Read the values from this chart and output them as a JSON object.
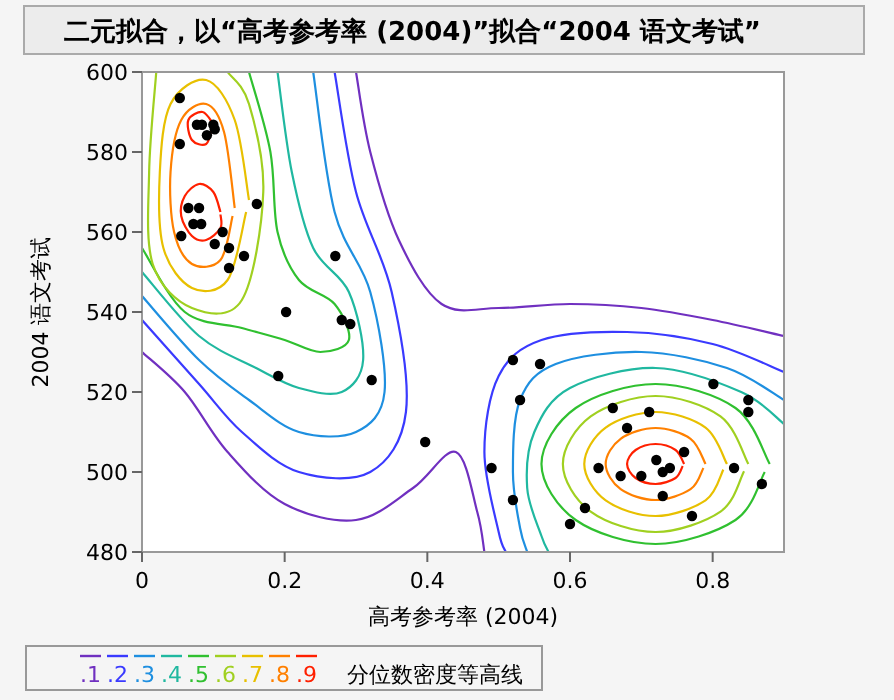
{
  "chart_data": {
    "type": "scatter",
    "title": "二元拟合，以“高考参考率 (2004)”拟合“2004 语文考试”",
    "xlabel": "高考参考率 (2004)",
    "ylabel": "2004 语文考试",
    "legend_title": "分位数密度等高线",
    "legend": "bottom",
    "grid": false,
    "xlim": [
      0,
      0.9
    ],
    "ylim": [
      480,
      600
    ],
    "xticks": [
      0,
      0.2,
      0.4,
      0.6,
      0.8
    ],
    "yticks": [
      480,
      500,
      520,
      540,
      560,
      580,
      600
    ],
    "series": [
      {
        "name": ".1",
        "type": "line",
        "color": "#7030c0",
        "x": [
          0.0,
          0.06,
          0.12,
          0.2,
          0.3,
          0.38,
          0.44,
          0.47,
          0.48
        ],
        "values": [
          530,
          520,
          505,
          492,
          488,
          496,
          505,
          490,
          480
        ]
      },
      {
        "type": "line",
        "color": "#7030c0",
        "x": [
          0.3,
          0.32,
          0.36,
          0.42,
          0.5,
          0.6,
          0.7,
          0.8,
          0.9
        ],
        "values": [
          600,
          580,
          558,
          542,
          541,
          542,
          541,
          538,
          534
        ]
      },
      {
        "name": ".2",
        "type": "line",
        "color": "#3a3aff",
        "x": [
          0.0,
          0.08,
          0.14,
          0.22,
          0.32,
          0.37,
          0.35,
          0.3,
          0.27
        ],
        "values": [
          538,
          522,
          510,
          500,
          500,
          515,
          545,
          570,
          600
        ]
      },
      {
        "type": "line",
        "color": "#3a3aff",
        "x": [
          0.9,
          0.8,
          0.68,
          0.56,
          0.5,
          0.48,
          0.5,
          0.51
        ],
        "values": [
          525,
          532,
          535,
          533,
          524,
          505,
          485,
          480
        ]
      },
      {
        "name": ".3",
        "type": "line",
        "color": "#1e8fe0",
        "x": [
          0.0,
          0.08,
          0.15,
          0.22,
          0.3,
          0.34,
          0.32,
          0.27,
          0.24
        ],
        "values": [
          544,
          528,
          518,
          510,
          510,
          520,
          545,
          565,
          600
        ]
      },
      {
        "type": "line",
        "color": "#1e8fe0",
        "x": [
          0.9,
          0.82,
          0.7,
          0.58,
          0.53,
          0.52,
          0.53,
          0.54
        ],
        "values": [
          518,
          526,
          530,
          527,
          518,
          500,
          486,
          480
        ]
      },
      {
        "name": ".4",
        "type": "line",
        "color": "#20b8a0",
        "x": [
          0.0,
          0.08,
          0.16,
          0.22,
          0.28,
          0.31,
          0.29,
          0.24,
          0.21,
          0.19
        ],
        "values": [
          550,
          534,
          526,
          521,
          520,
          528,
          545,
          556,
          575,
          600
        ]
      },
      {
        "type": "line",
        "color": "#20b8a0",
        "x": [
          0.9,
          0.84,
          0.72,
          0.6,
          0.55,
          0.54,
          0.56,
          0.57
        ],
        "values": [
          512,
          520,
          526,
          521,
          510,
          496,
          484,
          480
        ]
      },
      {
        "name": ".5",
        "type": "line",
        "color": "#30c030",
        "x": [
          0.0,
          0.06,
          0.14,
          0.2,
          0.25,
          0.29,
          0.27,
          0.22,
          0.19,
          0.18,
          0.15
        ],
        "values": [
          556,
          540,
          536,
          533,
          530,
          533,
          542,
          548,
          560,
          580,
          600
        ]
      },
      {
        "type": "line",
        "color": "#30c030",
        "x": [
          0.88,
          0.832,
          0.72,
          0.608,
          0.56,
          0.608,
          0.72,
          0.832,
          0.873
        ],
        "values": [
          502,
          516,
          522,
          516,
          502,
          488,
          482,
          488,
          500
        ]
      },
      {
        "name": ".6",
        "type": "line",
        "color": "#a0d020",
        "x": [
          0.02,
          0.01,
          0.015,
          0.07,
          0.14,
          0.17,
          0.15,
          0.12
        ],
        "values": [
          600,
          575,
          552,
          541,
          543,
          570,
          592,
          600
        ]
      },
      {
        "type": "line",
        "color": "#a0d020",
        "x": [
          0.85,
          0.811,
          0.72,
          0.629,
          0.59,
          0.629,
          0.72,
          0.811,
          0.844
        ],
        "values": [
          502,
          513.9,
          519,
          513.9,
          502,
          490.1,
          485,
          490.1,
          500.2
        ]
      },
      {
        "name": ".7",
        "type": "line",
        "color": "#e8c000",
        "x": [
          0.15,
          0.13,
          0.09,
          0.04,
          0.025,
          0.03,
          0.07,
          0.12,
          0.146
        ],
        "values": [
          568,
          588,
          598,
          592,
          575,
          556,
          546,
          548,
          565
        ]
      },
      {
        "type": "line",
        "color": "#e8c000",
        "x": [
          0.82,
          0.79,
          0.72,
          0.65,
          0.62,
          0.65,
          0.72,
          0.79,
          0.815
        ],
        "values": [
          502,
          511.1,
          515,
          511.1,
          502,
          492.9,
          489,
          492.9,
          500.6
        ]
      },
      {
        "name": ".8",
        "type": "line",
        "color": "#ff8000",
        "x": [
          0.13,
          0.115,
          0.09,
          0.055,
          0.04,
          0.045,
          0.07,
          0.11,
          0.127
        ],
        "values": [
          566,
          585,
          592,
          588,
          575,
          560,
          552,
          553,
          564
        ]
      },
      {
        "type": "line",
        "color": "#ff8000",
        "x": [
          0.79,
          0.769,
          0.72,
          0.671,
          0.65,
          0.671,
          0.72,
          0.769,
          0.787
        ],
        "values": [
          502,
          508.3,
          511,
          508.3,
          502,
          495.7,
          493,
          495.7,
          501
        ]
      },
      {
        "name": ".9",
        "type": "line",
        "color": "#ff2000",
        "x": [
          0.11,
          0.1,
          0.08,
          0.06,
          0.055,
          0.07,
          0.09,
          0.11,
          0.11
        ],
        "values": [
          565,
          570,
          572,
          569,
          564,
          559,
          558,
          561,
          564.4
        ]
      },
      {
        "type": "line",
        "color": "#ff2000",
        "x": [
          0.1,
          0.085,
          0.065,
          0.07,
          0.09,
          0.098
        ],
        "values": [
          587,
          590,
          588,
          583,
          582,
          586
        ]
      },
      {
        "type": "line",
        "color": "#ff2000",
        "x": [
          0.76,
          0.748,
          0.72,
          0.692,
          0.68,
          0.692,
          0.72,
          0.748,
          0.758
        ],
        "values": [
          502,
          505.5,
          507,
          505.5,
          502,
          498.5,
          497,
          498.5,
          501.5
        ]
      },
      {
        "type": "scatter",
        "color": "#000000",
        "marker": "circle",
        "x": [
          0.053,
          0.077,
          0.084,
          0.1,
          0.102,
          0.091,
          0.053,
          0.065,
          0.08,
          0.072,
          0.083,
          0.113,
          0.055,
          0.102,
          0.122,
          0.161,
          0.143,
          0.122,
          0.271,
          0.202,
          0.28,
          0.292,
          0.191,
          0.322,
          0.397,
          0.52,
          0.558,
          0.801,
          0.85,
          0.85,
          0.53,
          0.66,
          0.711,
          0.68,
          0.49,
          0.64,
          0.671,
          0.7,
          0.721,
          0.74,
          0.73,
          0.76,
          0.73,
          0.83,
          0.869,
          0.52,
          0.621,
          0.771,
          0.6
        ],
        "values": [
          593.5,
          586.8,
          586.8,
          586.8,
          585.7,
          584.2,
          582,
          566,
          566,
          562,
          562,
          560,
          559,
          557,
          556,
          567,
          554,
          551,
          554,
          540,
          538,
          537,
          524,
          523,
          507.5,
          528,
          527,
          522,
          518,
          515,
          518,
          516,
          515,
          511,
          501,
          501,
          499,
          499,
          503,
          501,
          500,
          505,
          494,
          501,
          497,
          493,
          491,
          489,
          487
        ]
      }
    ]
  }
}
